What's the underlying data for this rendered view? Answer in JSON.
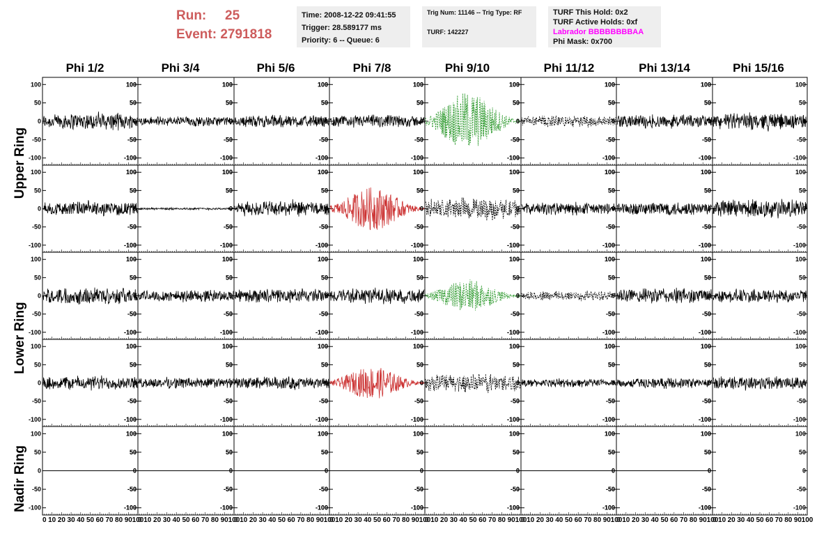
{
  "header": {
    "run_label": "Run:",
    "run_value": "25",
    "event_label": "Event:",
    "event_value": "2791818",
    "time": "Time: 2008-12-22 09:41:55",
    "trigger": "Trigger: 28.589177 ms",
    "priority": "Priority: 6 -- Queue: 6",
    "trig_num": "Trig Num: 11146 -- Trig Type: RF",
    "turf": "TURF: 142227",
    "turf_this_hold": "TURF This Hold: 0x2",
    "turf_active_holds": "TURF Active Holds: 0xf",
    "labrador": "Labrador BBBBBBBBAA",
    "phi_mask": "Phi Mask: 0x700"
  },
  "colors": {
    "header_red": "#cd5c5c",
    "labrador_magenta": "#ff00ff",
    "trace_black": "#000000",
    "trace_green": "#2e9a2e",
    "trace_red": "#cc3333"
  },
  "chart_data": {
    "type": "line",
    "columns": [
      "Phi 1/2",
      "Phi 3/4",
      "Phi 5/6",
      "Phi 7/8",
      "Phi 9/10",
      "Phi 11/12",
      "Phi 13/14",
      "Phi 15/16"
    ],
    "ring_labels": [
      "Upper Ring",
      "Lower Ring",
      "Nadir Ring"
    ],
    "ylim": [
      -110,
      110
    ],
    "xlim": [
      0,
      100
    ],
    "y_ticks": [
      100,
      50,
      0,
      -50,
      -100
    ],
    "x_tick_labels": [
      "0",
      "10",
      "20",
      "30",
      "40",
      "50",
      "60",
      "70",
      "80",
      "90",
      "100"
    ],
    "rows": [
      [
        {
          "style": "solid",
          "color": "black",
          "amplitude": 30
        },
        {
          "style": "solid",
          "color": "black",
          "amplitude": 18
        },
        {
          "style": "solid",
          "color": "black",
          "amplitude": 22
        },
        {
          "style": "solid",
          "color": "black",
          "amplitude": 22
        },
        {
          "style": "dashed",
          "color": "green",
          "amplitude": 80
        },
        {
          "style": "dashed",
          "color": "black",
          "amplitude": 20
        },
        {
          "style": "solid",
          "color": "black",
          "amplitude": 25
        },
        {
          "style": "solid",
          "color": "black",
          "amplitude": 30
        }
      ],
      [
        {
          "style": "solid",
          "color": "black",
          "amplitude": 25
        },
        {
          "style": "solid",
          "color": "black",
          "amplitude": 4
        },
        {
          "style": "solid",
          "color": "black",
          "amplitude": 28
        },
        {
          "style": "solid",
          "color": "red",
          "amplitude": 60
        },
        {
          "style": "dashed",
          "color": "black",
          "amplitude": 40
        },
        {
          "style": "solid",
          "color": "black",
          "amplitude": 22
        },
        {
          "style": "solid",
          "color": "black",
          "amplitude": 25
        },
        {
          "style": "solid",
          "color": "black",
          "amplitude": 35
        }
      ],
      [
        {
          "style": "solid",
          "color": "black",
          "amplitude": 30
        },
        {
          "style": "solid",
          "color": "black",
          "amplitude": 22
        },
        {
          "style": "solid",
          "color": "black",
          "amplitude": 25
        },
        {
          "style": "solid",
          "color": "black",
          "amplitude": 28
        },
        {
          "style": "dashed",
          "color": "green",
          "amplitude": 45
        },
        {
          "style": "dashed",
          "color": "black",
          "amplitude": 18
        },
        {
          "style": "solid",
          "color": "black",
          "amplitude": 28
        },
        {
          "style": "solid",
          "color": "black",
          "amplitude": 25
        }
      ],
      [
        {
          "style": "solid",
          "color": "black",
          "amplitude": 25
        },
        {
          "style": "solid",
          "color": "black",
          "amplitude": 20
        },
        {
          "style": "solid",
          "color": "black",
          "amplitude": 22
        },
        {
          "style": "solid",
          "color": "red",
          "amplitude": 45
        },
        {
          "style": "dashed",
          "color": "black",
          "amplitude": 35
        },
        {
          "style": "solid",
          "color": "black",
          "amplitude": 15
        },
        {
          "style": "solid",
          "color": "black",
          "amplitude": 18
        },
        {
          "style": "solid",
          "color": "black",
          "amplitude": 25
        }
      ],
      [
        {
          "style": "flat",
          "color": "black",
          "amplitude": 0
        },
        {
          "style": "flat",
          "color": "black",
          "amplitude": 0
        },
        {
          "style": "flat",
          "color": "black",
          "amplitude": 0
        },
        {
          "style": "flat",
          "color": "black",
          "amplitude": 0
        },
        {
          "style": "flat",
          "color": "black",
          "amplitude": 0
        },
        {
          "style": "flat",
          "color": "black",
          "amplitude": 0
        },
        {
          "style": "flat",
          "color": "black",
          "amplitude": 0
        },
        {
          "style": "none",
          "color": "black",
          "amplitude": 0
        }
      ]
    ]
  }
}
